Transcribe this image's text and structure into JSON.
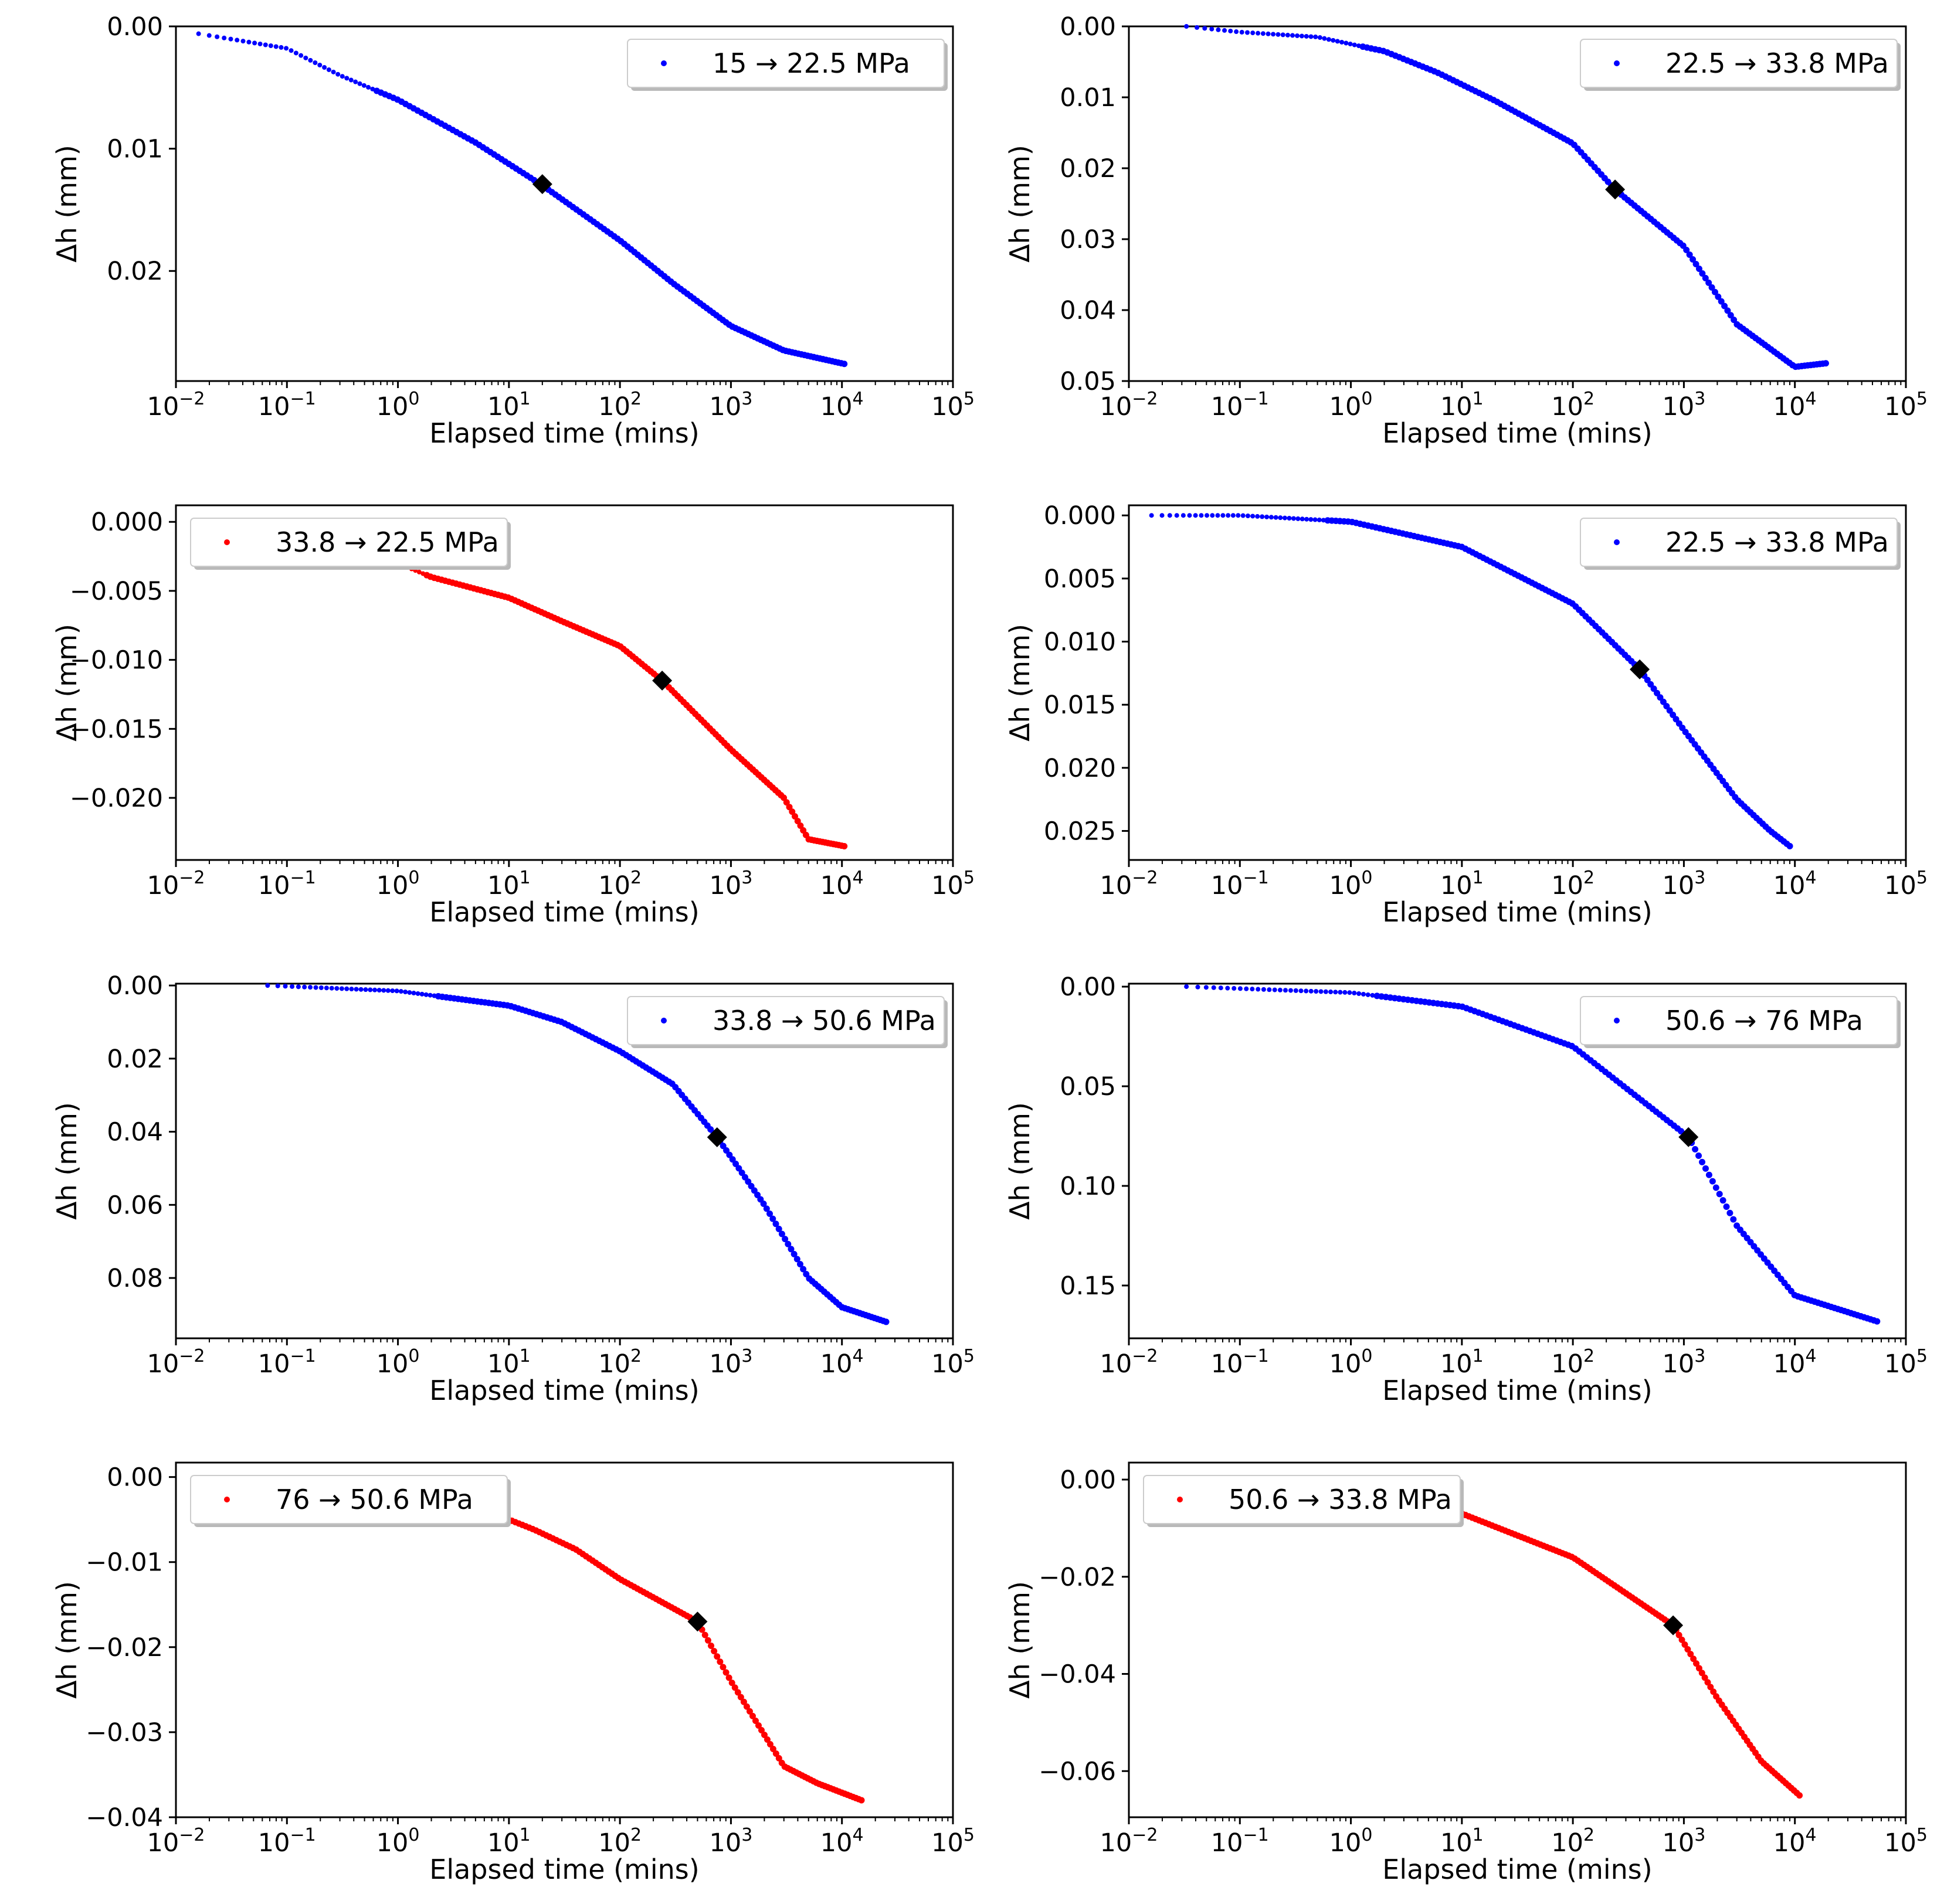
{
  "figure": {
    "x_label": "Elapsed time (mins)",
    "y_label": "Δh (mm)"
  },
  "chart_data": [
    {
      "type": "scatter",
      "position": "row1-left",
      "x_scale": "log",
      "xlim": [
        0.01,
        100000
      ],
      "x_tick_labels": [
        "10−2",
        "10−1",
        "100",
        "101",
        "102",
        "103",
        "104",
        "105"
      ],
      "y_inverted": true,
      "ylim": [
        0,
        0.029
      ],
      "y_ticks": [
        0,
        0.01,
        0.02
      ],
      "y_tick_labels": [
        "0.00",
        "0.01",
        "0.02"
      ],
      "xlabel": "Elapsed time (mins)",
      "ylabel": "Δh (mm)",
      "legend": {
        "label": "15 → 22.5 MPa",
        "placement": "top-right"
      },
      "series": [
        {
          "name": "15 → 22.5 MPa",
          "color": "#0000ff",
          "x_start": 0.016,
          "x_end": 10500,
          "curve": [
            [
              0.016,
              0.0006
            ],
            [
              0.1,
              0.0018
            ],
            [
              0.3,
              0.004
            ],
            [
              1,
              0.006
            ],
            [
              5,
              0.0095
            ],
            [
              20,
              0.013
            ],
            [
              100,
              0.0175
            ],
            [
              300,
              0.021
            ],
            [
              1000,
              0.0245
            ],
            [
              3000,
              0.0265
            ],
            [
              10500,
              0.0276
            ]
          ]
        }
      ],
      "marker": {
        "shape": "diamond",
        "color": "#000000",
        "x": 20,
        "y": 0.0129
      }
    },
    {
      "type": "scatter",
      "position": "row1-right",
      "x_scale": "log",
      "xlim": [
        0.01,
        100000
      ],
      "x_tick_labels": [
        "10−2",
        "10−1",
        "100",
        "101",
        "102",
        "103",
        "104",
        "105"
      ],
      "y_inverted": true,
      "ylim": [
        0,
        0.05
      ],
      "y_ticks": [
        0,
        0.01,
        0.02,
        0.03,
        0.04,
        0.05
      ],
      "y_tick_labels": [
        "0.00",
        "0.01",
        "0.02",
        "0.03",
        "0.04",
        "0.05"
      ],
      "xlabel": "Elapsed time (mins)",
      "ylabel": "Δh (mm)",
      "legend": {
        "label": "22.5 → 33.8 MPa",
        "placement": "top-right"
      },
      "series": [
        {
          "name": "22.5 → 33.8 MPa",
          "color": "#0000ff",
          "x_start": 0.033,
          "x_end": 19000,
          "curve": [
            [
              0.033,
              0
            ],
            [
              0.1,
              0.0008
            ],
            [
              0.5,
              0.0015
            ],
            [
              2,
              0.0035
            ],
            [
              6,
              0.0065
            ],
            [
              20,
              0.0105
            ],
            [
              100,
              0.0165
            ],
            [
              240,
              0.023
            ],
            [
              1000,
              0.031
            ],
            [
              3000,
              0.042
            ],
            [
              10000,
              0.048
            ],
            [
              19000,
              0.0475
            ]
          ]
        }
      ],
      "marker": {
        "shape": "diamond",
        "color": "#000000",
        "x": 240,
        "y": 0.023
      }
    },
    {
      "type": "scatter",
      "position": "row2-left",
      "x_scale": "log",
      "xlim": [
        0.01,
        100000
      ],
      "x_tick_labels": [
        "10−2",
        "10−1",
        "100",
        "101",
        "102",
        "103",
        "104",
        "105"
      ],
      "y_inverted": true,
      "ylim": [
        0.0012,
        -0.0245
      ],
      "y_ticks": [
        0,
        -0.005,
        -0.01,
        -0.015,
        -0.02
      ],
      "y_tick_labels": [
        "0.000",
        "−0.005",
        "−0.010",
        "−0.015",
        "−0.020"
      ],
      "xlabel": "Elapsed time (mins)",
      "ylabel": "Δh (mm)",
      "legend": {
        "label": "33.8 → 22.5 MPa",
        "placement": "top-left"
      },
      "series": [
        {
          "name": "33.8 → 22.5 MPa",
          "color": "#ff0000",
          "x_start": 0.067,
          "x_end": 10500,
          "curve": [
            [
              0.067,
              -0.0006
            ],
            [
              0.3,
              -0.002
            ],
            [
              1,
              -0.003
            ],
            [
              2,
              -0.004
            ],
            [
              10,
              -0.0055
            ],
            [
              30,
              -0.0072
            ],
            [
              100,
              -0.009
            ],
            [
              240,
              -0.0115
            ],
            [
              1000,
              -0.0165
            ],
            [
              3000,
              -0.02
            ],
            [
              5000,
              -0.023
            ],
            [
              10500,
              -0.0235
            ]
          ]
        }
      ],
      "marker": {
        "shape": "diamond",
        "color": "#000000",
        "x": 240,
        "y": -0.0115
      }
    },
    {
      "type": "scatter",
      "position": "row2-right",
      "x_scale": "log",
      "xlim": [
        0.01,
        100000
      ],
      "x_tick_labels": [
        "10−2",
        "10−1",
        "100",
        "101",
        "102",
        "103",
        "104",
        "105"
      ],
      "y_inverted": true,
      "ylim": [
        -0.0008,
        0.0273
      ],
      "y_ticks": [
        0,
        0.005,
        0.01,
        0.015,
        0.02,
        0.025
      ],
      "y_tick_labels": [
        "0.000",
        "0.005",
        "0.010",
        "0.015",
        "0.020",
        "0.025"
      ],
      "xlabel": "Elapsed time (mins)",
      "ylabel": "Δh (mm)",
      "legend": {
        "label": "22.5 → 33.8 MPa",
        "placement": "top-right"
      },
      "series": [
        {
          "name": "22.5 → 33.8 MPa",
          "color": "#0000ff",
          "x_start": 0.016,
          "x_end": 9000,
          "curve": [
            [
              0.016,
              0
            ],
            [
              0.1,
              0
            ],
            [
              1,
              0.0005
            ],
            [
              10,
              0.0025
            ],
            [
              100,
              0.007
            ],
            [
              400,
              0.0122
            ],
            [
              1000,
              0.017
            ],
            [
              3000,
              0.0225
            ],
            [
              6000,
              0.025
            ],
            [
              9000,
              0.0262
            ]
          ]
        }
      ],
      "marker": {
        "shape": "diamond",
        "color": "#000000",
        "x": 400,
        "y": 0.0122
      }
    },
    {
      "type": "scatter",
      "position": "row3-left",
      "x_scale": "log",
      "xlim": [
        0.01,
        100000
      ],
      "x_tick_labels": [
        "10−2",
        "10−1",
        "100",
        "101",
        "102",
        "103",
        "104",
        "105"
      ],
      "y_inverted": true,
      "ylim": [
        -0.0005,
        0.0965
      ],
      "y_ticks": [
        0,
        0.02,
        0.04,
        0.06,
        0.08
      ],
      "y_tick_labels": [
        "0.00",
        "0.02",
        "0.04",
        "0.06",
        "0.08"
      ],
      "xlabel": "Elapsed time (mins)",
      "ylabel": "Δh (mm)",
      "legend": {
        "label": "33.8 → 50.6 MPa",
        "placement": "top-right"
      },
      "series": [
        {
          "name": "33.8 → 50.6 MPa",
          "color": "#0000ff",
          "x_start": 0.067,
          "x_end": 25000,
          "curve": [
            [
              0.067,
              0
            ],
            [
              1,
              0.0015
            ],
            [
              10,
              0.0055
            ],
            [
              30,
              0.01
            ],
            [
              100,
              0.018
            ],
            [
              300,
              0.027
            ],
            [
              750,
              0.0415
            ],
            [
              2000,
              0.06
            ],
            [
              5000,
              0.08
            ],
            [
              10000,
              0.088
            ],
            [
              25000,
              0.092
            ]
          ]
        }
      ],
      "marker": {
        "shape": "diamond",
        "color": "#000000",
        "x": 750,
        "y": 0.0415
      }
    },
    {
      "type": "scatter",
      "position": "row3-right",
      "x_scale": "log",
      "xlim": [
        0.01,
        100000
      ],
      "x_tick_labels": [
        "10−2",
        "10−1",
        "100",
        "101",
        "102",
        "103",
        "104",
        "105"
      ],
      "y_inverted": true,
      "ylim": [
        -0.0015,
        0.1765
      ],
      "y_ticks": [
        0,
        0.05,
        0.1,
        0.15
      ],
      "y_tick_labels": [
        "0.00",
        "0.05",
        "0.10",
        "0.15"
      ],
      "xlabel": "Elapsed time (mins)",
      "ylabel": "Δh (mm)",
      "legend": {
        "label": "50.6 → 76 MPa",
        "placement": "top-right"
      },
      "series": [
        {
          "name": "50.6 → 76 MPa",
          "color": "#0000ff",
          "x_start": 0.033,
          "x_end": 55000,
          "curve": [
            [
              0.033,
              0
            ],
            [
              1,
              0.003
            ],
            [
              10,
              0.01
            ],
            [
              100,
              0.03
            ],
            [
              1100,
              0.0755
            ],
            [
              3000,
              0.12
            ],
            [
              10000,
              0.155
            ],
            [
              55000,
              0.168
            ]
          ]
        }
      ],
      "marker": {
        "shape": "diamond",
        "color": "#000000",
        "x": 1100,
        "y": 0.0755
      }
    },
    {
      "type": "scatter",
      "position": "row4-left",
      "x_scale": "log",
      "xlim": [
        0.01,
        100000
      ],
      "x_tick_labels": [
        "10−2",
        "10−1",
        "100",
        "101",
        "102",
        "103",
        "104",
        "105"
      ],
      "y_inverted": true,
      "ylim": [
        0.0017,
        -0.04
      ],
      "y_ticks": [
        0,
        -0.01,
        -0.02,
        -0.03,
        -0.04
      ],
      "y_tick_labels": [
        "0.00",
        "−0.01",
        "−0.02",
        "−0.03",
        "−0.04"
      ],
      "xlabel": "Elapsed time (mins)",
      "ylabel": "Δh (mm)",
      "legend": {
        "label": "76 → 50.6 MPa",
        "placement": "top-left"
      },
      "series": [
        {
          "name": "76 → 50.6 MPa",
          "color": "#ff0000",
          "x_start": 0.067,
          "x_end": 15000,
          "curve": [
            [
              0.067,
              -0.0004
            ],
            [
              1,
              -0.002
            ],
            [
              10,
              -0.005
            ],
            [
              17,
              -0.0062
            ],
            [
              40,
              -0.0085
            ],
            [
              100,
              -0.012
            ],
            [
              500,
              -0.017
            ],
            [
              1000,
              -0.024
            ],
            [
              3000,
              -0.034
            ],
            [
              6000,
              -0.036
            ],
            [
              15000,
              -0.038
            ]
          ]
        }
      ],
      "marker": {
        "shape": "diamond",
        "color": "#000000",
        "x": 500,
        "y": -0.017
      }
    },
    {
      "type": "scatter",
      "position": "row4-right",
      "x_scale": "log",
      "xlim": [
        0.01,
        100000
      ],
      "x_tick_labels": [
        "10−2",
        "10−1",
        "100",
        "101",
        "102",
        "103",
        "104",
        "105"
      ],
      "y_inverted": true,
      "ylim": [
        0.0035,
        -0.0695
      ],
      "y_ticks": [
        0,
        -0.02,
        -0.04,
        -0.06
      ],
      "y_tick_labels": [
        "0.00",
        "−0.02",
        "−0.04",
        "−0.06"
      ],
      "xlabel": "Elapsed time (mins)",
      "ylabel": "Δh (mm)",
      "legend": {
        "label": "50.6 → 33.8 MPa",
        "placement": "top-left"
      },
      "series": [
        {
          "name": "50.6 → 33.8 MPa",
          "color": "#ff0000",
          "x_start": 0.067,
          "x_end": 11000,
          "curve": [
            [
              0.067,
              -0.0005
            ],
            [
              1,
              -0.003
            ],
            [
              10,
              -0.007
            ],
            [
              100,
              -0.016
            ],
            [
              800,
              -0.03
            ],
            [
              2000,
              -0.045
            ],
            [
              5000,
              -0.058
            ],
            [
              11000,
              -0.065
            ]
          ]
        }
      ],
      "marker": {
        "shape": "diamond",
        "color": "#000000",
        "x": 800,
        "y": -0.03
      }
    }
  ]
}
